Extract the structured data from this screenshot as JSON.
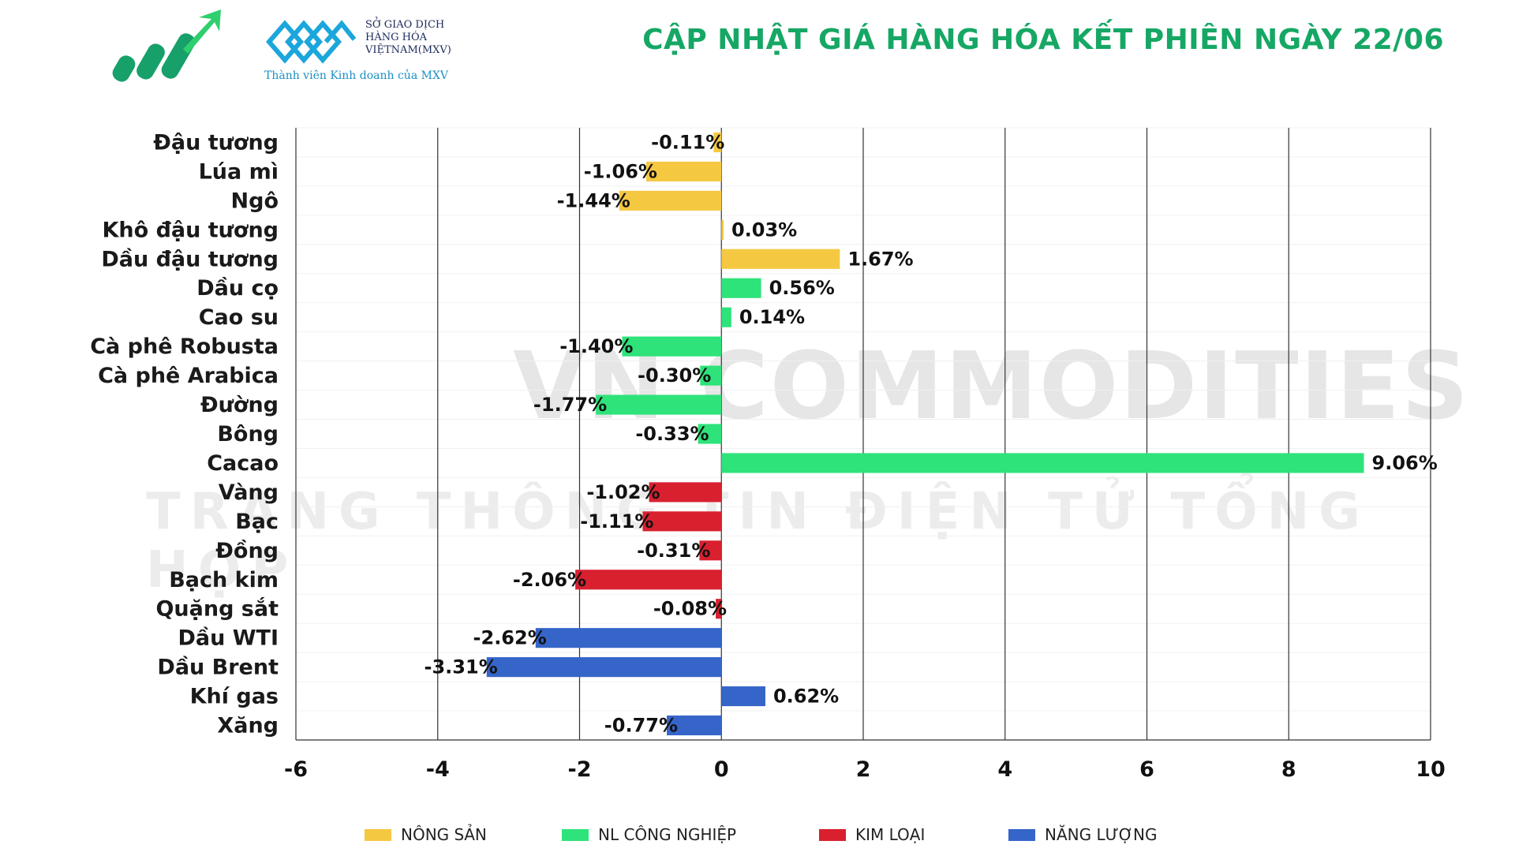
{
  "header": {
    "title": "CẬP NHẬT GIÁ HÀNG HÓA KẾT PHIÊN NGÀY 22/06",
    "mxv_name": [
      "SỞ GIAO DỊCH",
      "HÀNG HÓA",
      "VIỆTNAM(MXV)"
    ],
    "mxv_tagline": "Thành viên Kinh doanh của MXV",
    "mxv_tm": "™"
  },
  "watermark": {
    "line1": "VN COMMODITIES",
    "line2": "TRANG THÔNG TIN ĐIỆN TỬ TỔNG HỢP"
  },
  "legend": [
    {
      "label": "NÔNG SẢN",
      "color": "#f5c842"
    },
    {
      "label": "NL CÔNG NGHIỆP",
      "color": "#2ee37a"
    },
    {
      "label": "KIM LOẠI",
      "color": "#d8202f"
    },
    {
      "label": "NĂNG LƯỢNG",
      "color": "#3565c9"
    }
  ],
  "chart_data": {
    "type": "bar",
    "orientation": "horizontal",
    "xlim": [
      -6,
      10
    ],
    "xticks": [
      "-6",
      "-4",
      "-2",
      "0",
      "2",
      "4",
      "6",
      "8",
      "10"
    ],
    "grid": "vertical",
    "legend_position": "bottom",
    "bars": [
      {
        "category": "Đậu tương",
        "value": -0.11,
        "label": "-0.11%",
        "group": "NÔNG SẢN"
      },
      {
        "category": "Lúa mì",
        "value": -1.06,
        "label": "-1.06%",
        "group": "NÔNG SẢN"
      },
      {
        "category": "Ngô",
        "value": -1.44,
        "label": "-1.44%",
        "group": "NÔNG SẢN"
      },
      {
        "category": "Khô đậu tương",
        "value": 0.03,
        "label": "0.03%",
        "group": "NÔNG SẢN"
      },
      {
        "category": "Dầu đậu tương",
        "value": 1.67,
        "label": "1.67%",
        "group": "NÔNG SẢN"
      },
      {
        "category": "Dầu cọ",
        "value": 0.56,
        "label": "0.56%",
        "group": "NL CÔNG NGHIỆP"
      },
      {
        "category": "Cao su",
        "value": 0.14,
        "label": "0.14%",
        "group": "NL CÔNG NGHIỆP"
      },
      {
        "category": "Cà phê Robusta",
        "value": -1.4,
        "label": "-1.40%",
        "group": "NL CÔNG NGHIỆP"
      },
      {
        "category": "Cà phê Arabica",
        "value": -0.3,
        "label": "-0.30%",
        "group": "NL CÔNG NGHIỆP"
      },
      {
        "category": "Đường",
        "value": -1.77,
        "label": "-1.77%",
        "group": "NL CÔNG NGHIỆP"
      },
      {
        "category": "Bông",
        "value": -0.33,
        "label": "-0.33%",
        "group": "NL CÔNG NGHIỆP"
      },
      {
        "category": "Cacao",
        "value": 9.06,
        "label": "9.06%",
        "group": "NL CÔNG NGHIỆP"
      },
      {
        "category": "Vàng",
        "value": -1.02,
        "label": "-1.02%",
        "group": "KIM LOẠI"
      },
      {
        "category": "Bạc",
        "value": -1.11,
        "label": "-1.11%",
        "group": "KIM LOẠI"
      },
      {
        "category": "Đồng",
        "value": -0.31,
        "label": "-0.31%",
        "group": "KIM LOẠI"
      },
      {
        "category": "Bạch kim",
        "value": -2.06,
        "label": "-2.06%",
        "group": "KIM LOẠI"
      },
      {
        "category": "Quặng sắt",
        "value": -0.08,
        "label": "-0.08%",
        "group": "KIM LOẠI"
      },
      {
        "category": "Dầu WTI",
        "value": -2.62,
        "label": "-2.62%",
        "group": "NĂNG LƯỢNG"
      },
      {
        "category": "Dầu Brent",
        "value": -3.31,
        "label": "-3.31%",
        "group": "NĂNG LƯỢNG"
      },
      {
        "category": "Khí gas",
        "value": 0.62,
        "label": "0.62%",
        "group": "NĂNG LƯỢNG"
      },
      {
        "category": "Xăng",
        "value": -0.77,
        "label": "-0.77%",
        "group": "NĂNG LƯỢNG"
      }
    ]
  }
}
